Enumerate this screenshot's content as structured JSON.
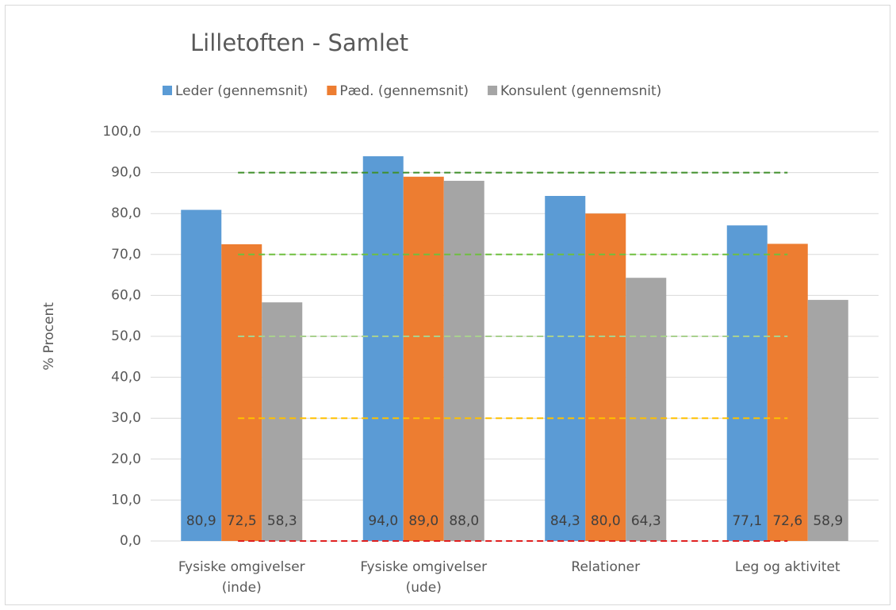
{
  "chart_data": {
    "type": "bar",
    "title": "Lilletoften - Samlet",
    "y_label": "% Procent",
    "categories": [
      [
        "Fysiske omgivelser",
        "(inde)"
      ],
      [
        "Fysiske omgivelser",
        "(ude)"
      ],
      [
        "Relationer"
      ],
      [
        "Leg og aktivitet"
      ]
    ],
    "series": [
      {
        "name": "Leder (gennemsnit)",
        "color": "#5b9bd5",
        "values": [
          80.9,
          94.0,
          84.3,
          77.1
        ],
        "value_labels": [
          "80,9",
          "94,0",
          "84,3",
          "77,1"
        ]
      },
      {
        "name": "Pæd. (gennemsnit)",
        "color": "#ed7d31",
        "values": [
          72.5,
          89.0,
          80.0,
          72.6
        ],
        "value_labels": [
          "72,5",
          "89,0",
          "80,0",
          "72,6"
        ]
      },
      {
        "name": "Konsulent (gennemsnit)",
        "color": "#a5a5a5",
        "values": [
          58.3,
          88.0,
          64.3,
          58.9
        ],
        "value_labels": [
          "58,3",
          "88,0",
          "64,3",
          "58,9"
        ]
      }
    ],
    "ylim": [
      0,
      100
    ],
    "yticks": [
      {
        "value": 0,
        "label": "0,0"
      },
      {
        "value": 10,
        "label": "10,0"
      },
      {
        "value": 20,
        "label": "20,0"
      },
      {
        "value": 30,
        "label": "30,0"
      },
      {
        "value": 40,
        "label": "40,0"
      },
      {
        "value": 50,
        "label": "50,0"
      },
      {
        "value": 60,
        "label": "60,0"
      },
      {
        "value": 70,
        "label": "70,0"
      },
      {
        "value": 80,
        "label": "80,0"
      },
      {
        "value": 90,
        "label": "90,0"
      },
      {
        "value": 100,
        "label": "100,0"
      }
    ],
    "grid": true,
    "legend": "top",
    "reference_lines": [
      {
        "value": 90,
        "color": "#3f8f2a"
      },
      {
        "value": 70,
        "color": "#6fbf3f"
      },
      {
        "value": 50,
        "color": "#a9d18e"
      },
      {
        "value": 30,
        "color": "#ffc000"
      },
      {
        "value": 0,
        "color": "#e02020"
      }
    ]
  }
}
